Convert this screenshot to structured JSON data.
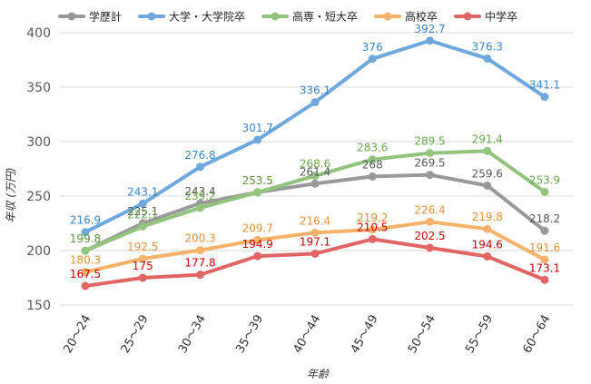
{
  "chart_data": {
    "type": "line",
    "categories": [
      "20〜24",
      "25〜29",
      "30〜34",
      "35〜39",
      "40〜44",
      "45〜49",
      "50〜54",
      "55〜59",
      "60〜64"
    ],
    "xlabel": "年齢",
    "ylabel": "年収 (万円)",
    "ylim": [
      150,
      400
    ],
    "yticks": [
      150,
      200,
      250,
      300,
      350,
      400
    ],
    "grid": true,
    "legend_position": "top",
    "series": [
      {
        "name": "学歴計",
        "color": "#999999",
        "label_color": "#595959",
        "values": [
          199.8,
          225.1,
          243.4,
          253.5,
          261.4,
          268,
          269.5,
          259.6,
          218.2
        ]
      },
      {
        "name": "大学・大学院卒",
        "color": "#6fa8dc",
        "label_color": "#3d85c6",
        "values": [
          216.9,
          243.1,
          276.8,
          301.7,
          336.1,
          376,
          392.7,
          376.3,
          341.1
        ]
      },
      {
        "name": "高専・短大卒",
        "color": "#93c47d",
        "label_color": "#6aa84f",
        "values": [
          199.8,
          222.1,
          239.2,
          253.5,
          268.6,
          283.6,
          289.5,
          291.4,
          253.9
        ]
      },
      {
        "name": "高校卒",
        "color": "#f6b26b",
        "label_color": "#e69138",
        "values": [
          180.3,
          192.5,
          200.3,
          209.7,
          216.4,
          219.2,
          226.4,
          219.8,
          191.6
        ]
      },
      {
        "name": "中学卒",
        "color": "#e06666",
        "label_color": "#cc0000",
        "values": [
          167.5,
          175,
          177.8,
          194.9,
          197.1,
          210.5,
          202.5,
          194.6,
          173.1
        ]
      }
    ]
  }
}
